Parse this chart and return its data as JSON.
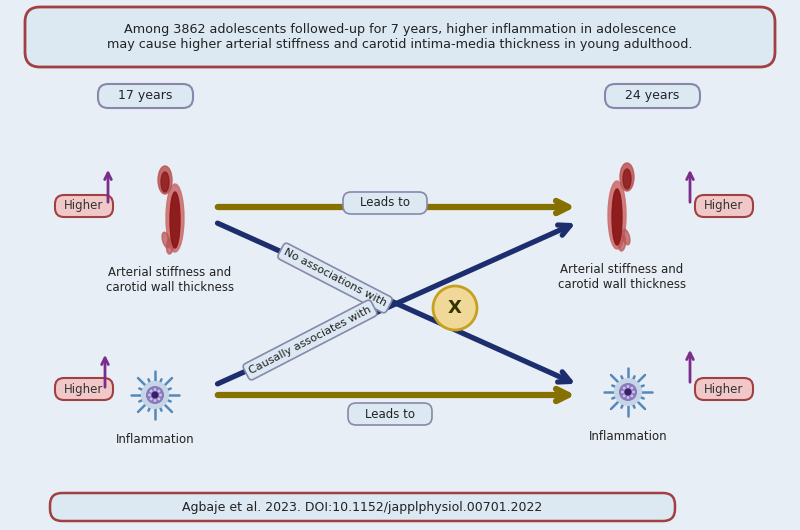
{
  "bg_color": "#e8eef5",
  "title_box_text": "Among 3862 adolescents followed-up for 7 years, higher inflammation in adolescence\nmay cause higher arterial stiffness and carotid intima-media thickness in young adulthood.",
  "footer_text": "Agbaje et al. 2023. DOI:10.1152/japplphysiol.00701.2022",
  "year_left": "17 years",
  "year_right": "24 years",
  "label_artery": "Arterial stiffness and\ncarotid wall thickness",
  "label_inflam": "Inflammation",
  "higher_label": "Higher",
  "leads_to": "Leads to",
  "no_assoc_text": "No associations with",
  "causally_text": "Causally associates with",
  "cross_label": "X",
  "arrow_color_olive": "#857000",
  "arrow_color_navy": "#1c2e6e",
  "box_border_color": "#a04040",
  "box_fill_color": "#dce8f2",
  "higher_box_fill": "#f0c8c8",
  "higher_box_border": "#a04040",
  "year_box_fill": "#dce8f2",
  "year_box_border": "#8888aa",
  "no_assoc_box_fill": "#dce8f2",
  "no_assoc_box_border": "#8888aa",
  "cross_circle_fill": "#f0d898",
  "cross_circle_border": "#c8a020",
  "purple_color": "#7b2d8b",
  "text_color": "#222222"
}
